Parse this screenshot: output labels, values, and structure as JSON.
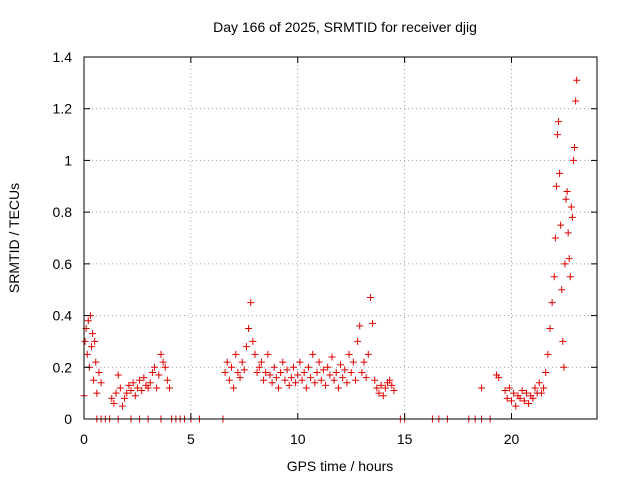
{
  "chart_data": {
    "type": "scatter",
    "title": "Day 166 of 2025, SRMTID for receiver djig",
    "xlabel": "GPS time / hours",
    "ylabel": "SRMTID / TECUs",
    "xlim": [
      0,
      24
    ],
    "ylim": [
      0,
      1.4
    ],
    "xticks": [
      0,
      5,
      10,
      15,
      20
    ],
    "xtick_labels": [
      "0",
      "5",
      "10",
      "15",
      "20"
    ],
    "yticks": [
      0,
      0.2,
      0.4,
      0.6,
      0.8,
      1.0,
      1.2,
      1.4
    ],
    "ytick_labels": [
      "0",
      "0.2",
      "0.4",
      "0.6",
      "0.8",
      "1",
      "1.2",
      "1.4"
    ],
    "grid": true,
    "marker": "+",
    "colors": {
      "series": "#e00000",
      "grid": "#a0a0a0",
      "axes": "#000000"
    },
    "series": [
      {
        "name": "SRMTID",
        "x": [
          0.0,
          0.05,
          0.1,
          0.15,
          0.2,
          0.25,
          0.3,
          0.35,
          0.4,
          0.45,
          0.5,
          0.55,
          0.6,
          0.7,
          0.8,
          1.3,
          1.4,
          1.5,
          1.6,
          1.7,
          1.8,
          1.9,
          2.0,
          2.1,
          2.2,
          2.3,
          2.4,
          2.5,
          2.6,
          2.7,
          2.8,
          2.9,
          3.0,
          3.1,
          3.2,
          3.3,
          3.4,
          3.5,
          3.6,
          3.7,
          3.8,
          3.9,
          4.0,
          6.6,
          6.7,
          6.8,
          6.9,
          7.0,
          7.1,
          7.2,
          7.3,
          7.4,
          7.5,
          7.6,
          7.7,
          7.8,
          7.9,
          8.0,
          8.1,
          8.2,
          8.3,
          8.4,
          8.5,
          8.6,
          8.7,
          8.8,
          8.9,
          9.0,
          9.1,
          9.2,
          9.3,
          9.4,
          9.5,
          9.6,
          9.7,
          9.8,
          9.9,
          10.0,
          10.1,
          10.2,
          10.3,
          10.4,
          10.5,
          10.6,
          10.7,
          10.8,
          10.9,
          11.0,
          11.1,
          11.2,
          11.3,
          11.4,
          11.5,
          11.6,
          11.7,
          11.8,
          11.9,
          12.0,
          12.1,
          12.2,
          12.3,
          12.4,
          12.5,
          12.6,
          12.7,
          12.8,
          12.9,
          13.0,
          13.1,
          13.2,
          13.3,
          13.4,
          13.5,
          13.6,
          13.7,
          13.8,
          13.9,
          14.0,
          14.1,
          14.2,
          14.3,
          14.4,
          14.5,
          18.6,
          19.3,
          19.4,
          19.7,
          19.8,
          19.9,
          20.0,
          20.1,
          20.2,
          20.3,
          20.4,
          20.5,
          20.6,
          20.7,
          20.8,
          20.9,
          21.0,
          21.1,
          21.2,
          21.3,
          21.4,
          21.5,
          21.6,
          21.7,
          21.8,
          21.9,
          22.0,
          22.05,
          22.1,
          22.15,
          22.2,
          22.25,
          22.3,
          22.35,
          22.4,
          22.45,
          22.5,
          22.55,
          22.6,
          22.65,
          22.7,
          22.75,
          22.8,
          22.85,
          22.9,
          22.95,
          23.0,
          23.05,
          0.6,
          0.8,
          1.0,
          1.2,
          1.6,
          2.2,
          2.6,
          3.0,
          3.6,
          4.1,
          4.3,
          4.5,
          4.7,
          5.0,
          5.4,
          6.5,
          14.8,
          15.0,
          16.3,
          16.6,
          17.0,
          18.0,
          18.3,
          18.6,
          19.0
        ],
        "y": [
          0.09,
          0.3,
          0.35,
          0.25,
          0.38,
          0.2,
          0.4,
          0.28,
          0.33,
          0.15,
          0.3,
          0.22,
          0.1,
          0.18,
          0.14,
          0.08,
          0.06,
          0.1,
          0.17,
          0.12,
          0.05,
          0.08,
          0.1,
          0.13,
          0.11,
          0.14,
          0.09,
          0.12,
          0.15,
          0.11,
          0.16,
          0.13,
          0.12,
          0.14,
          0.18,
          0.2,
          0.12,
          0.17,
          0.25,
          0.22,
          0.2,
          0.15,
          0.12,
          0.18,
          0.22,
          0.15,
          0.2,
          0.12,
          0.25,
          0.18,
          0.16,
          0.22,
          0.19,
          0.28,
          0.35,
          0.45,
          0.3,
          0.25,
          0.18,
          0.2,
          0.22,
          0.15,
          0.18,
          0.25,
          0.17,
          0.14,
          0.2,
          0.16,
          0.12,
          0.18,
          0.22,
          0.15,
          0.19,
          0.13,
          0.16,
          0.2,
          0.14,
          0.17,
          0.22,
          0.15,
          0.18,
          0.12,
          0.2,
          0.16,
          0.25,
          0.14,
          0.18,
          0.22,
          0.15,
          0.19,
          0.13,
          0.2,
          0.17,
          0.24,
          0.15,
          0.18,
          0.12,
          0.21,
          0.16,
          0.19,
          0.14,
          0.25,
          0.18,
          0.22,
          0.15,
          0.3,
          0.36,
          0.18,
          0.22,
          0.16,
          0.25,
          0.47,
          0.37,
          0.15,
          0.12,
          0.1,
          0.13,
          0.09,
          0.12,
          0.14,
          0.15,
          0.13,
          0.11,
          0.12,
          0.17,
          0.16,
          0.11,
          0.08,
          0.12,
          0.07,
          0.1,
          0.05,
          0.09,
          0.08,
          0.11,
          0.07,
          0.1,
          0.06,
          0.09,
          0.08,
          0.12,
          0.1,
          0.14,
          0.1,
          0.12,
          0.18,
          0.25,
          0.35,
          0.45,
          0.55,
          0.7,
          0.9,
          1.1,
          1.15,
          0.95,
          0.75,
          0.5,
          0.3,
          0.2,
          0.6,
          0.85,
          0.88,
          0.72,
          0.62,
          0.55,
          0.82,
          0.78,
          1.0,
          1.05,
          1.23,
          1.31,
          0,
          0,
          0,
          0,
          0,
          0,
          0,
          0,
          0,
          0,
          0,
          0,
          0,
          0,
          0,
          0,
          0,
          0,
          0,
          0,
          0,
          0,
          0,
          0,
          0
        ]
      }
    ]
  }
}
